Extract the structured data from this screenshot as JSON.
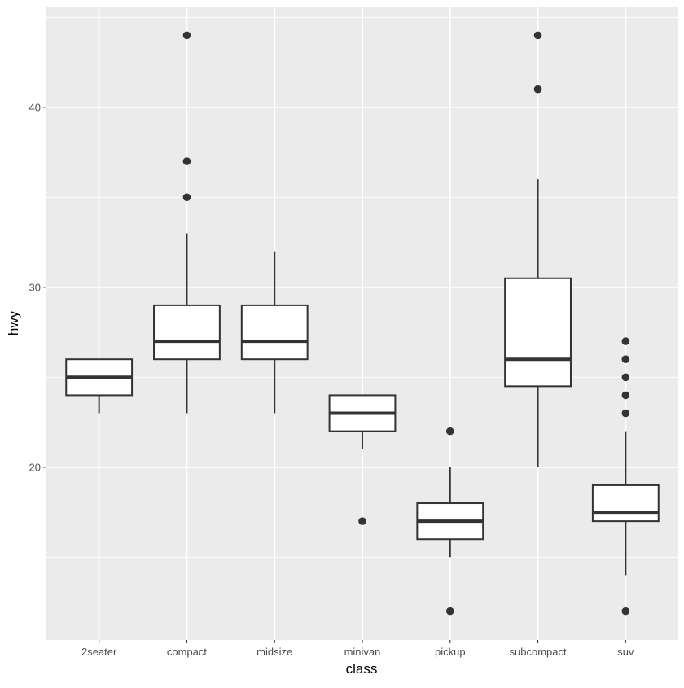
{
  "chart_data": {
    "type": "boxplot",
    "xlabel": "class",
    "ylabel": "hwy",
    "ylim": [
      10.4,
      45.6
    ],
    "y_ticks": [
      20,
      30,
      40
    ],
    "y_minor_ticks": [
      15,
      25,
      35,
      45
    ],
    "grid": true,
    "colors": {
      "panel_background": "#ebebeb",
      "grid_line": "#ffffff",
      "box_fill": "#ffffff",
      "box_stroke": "#333333",
      "outlier": "#333333",
      "tick_label": "#4d4d4d"
    },
    "categories": [
      "2seater",
      "compact",
      "midsize",
      "minivan",
      "pickup",
      "subcompact",
      "suv"
    ],
    "boxes": [
      {
        "category": "2seater",
        "whisker_low": 23,
        "q1": 24,
        "median": 25,
        "q3": 26,
        "whisker_high": 26,
        "outliers": []
      },
      {
        "category": "compact",
        "whisker_low": 23,
        "q1": 26,
        "median": 27,
        "q3": 29,
        "whisker_high": 33,
        "outliers": [
          35,
          37,
          44
        ]
      },
      {
        "category": "midsize",
        "whisker_low": 23,
        "q1": 26,
        "median": 27,
        "q3": 29,
        "whisker_high": 32,
        "outliers": []
      },
      {
        "category": "minivan",
        "whisker_low": 21,
        "q1": 22,
        "median": 23,
        "q3": 24,
        "whisker_high": 24,
        "outliers": [
          17
        ]
      },
      {
        "category": "pickup",
        "whisker_low": 15,
        "q1": 16,
        "median": 17,
        "q3": 18,
        "whisker_high": 20,
        "outliers": [
          12,
          22
        ]
      },
      {
        "category": "subcompact",
        "whisker_low": 20,
        "q1": 24.5,
        "median": 26,
        "q3": 30.5,
        "whisker_high": 36,
        "outliers": [
          41,
          44
        ]
      },
      {
        "category": "suv",
        "whisker_low": 14,
        "q1": 17,
        "median": 17.5,
        "q3": 19,
        "whisker_high": 22,
        "outliers": [
          12,
          23,
          24,
          25,
          26,
          27
        ]
      }
    ]
  }
}
